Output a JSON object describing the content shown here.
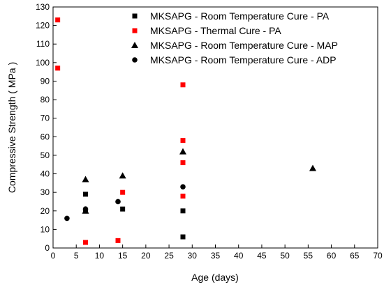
{
  "chart_data": {
    "type": "scatter",
    "title": "",
    "xlabel": "Age (days)",
    "ylabel": "Compressive Strength ( MPa )",
    "xlim": [
      0,
      70
    ],
    "ylim": [
      0,
      130
    ],
    "xticks": [
      0,
      5,
      10,
      15,
      20,
      25,
      30,
      35,
      40,
      45,
      50,
      55,
      60,
      65,
      70
    ],
    "yticks": [
      0,
      10,
      20,
      30,
      40,
      50,
      60,
      70,
      80,
      90,
      100,
      110,
      120,
      130
    ],
    "grid": false,
    "legend_position": "top-right",
    "series": [
      {
        "name": "MKSAPG - Room Temperature Cure - PA",
        "marker": "square",
        "color": "#000000",
        "points": [
          [
            7,
            29
          ],
          [
            7,
            20
          ],
          [
            15,
            21
          ],
          [
            28,
            20
          ],
          [
            28,
            6
          ]
        ]
      },
      {
        "name": "MKSAPG - Thermal Cure - PA",
        "marker": "square",
        "color": "#ff0000",
        "points": [
          [
            1,
            123
          ],
          [
            1,
            97
          ],
          [
            7,
            3
          ],
          [
            14,
            4
          ],
          [
            15,
            30
          ],
          [
            28,
            88
          ],
          [
            28,
            58
          ],
          [
            28,
            46
          ],
          [
            28,
            28
          ]
        ]
      },
      {
        "name": "MKSAPG - Room Temperature Cure - MAP",
        "marker": "triangle",
        "color": "#000000",
        "points": [
          [
            7,
            37
          ],
          [
            7,
            20
          ],
          [
            15,
            39
          ],
          [
            28,
            52
          ],
          [
            56,
            43
          ]
        ]
      },
      {
        "name": "MKSAPG - Room Temperature Cure - ADP",
        "marker": "circle",
        "color": "#000000",
        "points": [
          [
            3,
            16
          ],
          [
            7,
            21
          ],
          [
            14,
            25
          ],
          [
            28,
            33
          ]
        ]
      }
    ]
  }
}
